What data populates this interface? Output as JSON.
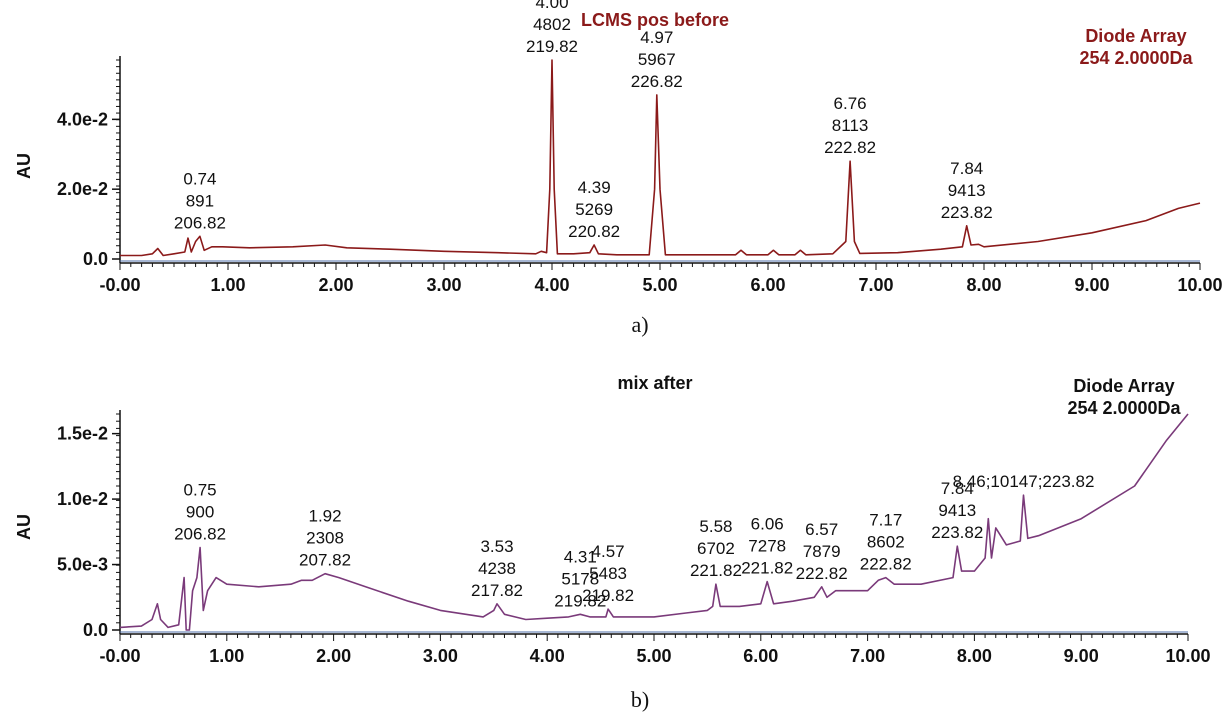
{
  "chart_data": [
    {
      "type": "line",
      "title": "LCMS  pos  before",
      "corner_label": [
        "Diode Array",
        "254 2.0000Da"
      ],
      "ylabel": "AU",
      "caption": "a)",
      "color": "#8b1a1a",
      "title_color": "#8b1a1a",
      "xlim": [
        0,
        10
      ],
      "ylim": [
        0,
        0.057
      ],
      "xticks": [
        "-0.00",
        "1.00",
        "2.00",
        "3.00",
        "4.00",
        "5.00",
        "6.00",
        "7.00",
        "8.00",
        "9.00",
        "10.00"
      ],
      "yticks": [
        {
          "value": 0,
          "label": "0.0"
        },
        {
          "value": 0.02,
          "label": "2.0e-2"
        },
        {
          "value": 0.04,
          "label": "4.0e-2"
        }
      ],
      "x": [
        0.0,
        0.2,
        0.3,
        0.35,
        0.4,
        0.5,
        0.6,
        0.63,
        0.66,
        0.7,
        0.74,
        0.78,
        0.85,
        0.95,
        1.2,
        1.6,
        1.9,
        2.1,
        2.5,
        3.0,
        3.5,
        3.85,
        3.9,
        3.95,
        3.98,
        4.0,
        4.02,
        4.05,
        4.2,
        4.35,
        4.39,
        4.43,
        4.6,
        4.9,
        4.95,
        4.97,
        5.0,
        5.05,
        5.3,
        5.7,
        5.75,
        5.8,
        6.0,
        6.05,
        6.1,
        6.25,
        6.3,
        6.35,
        6.6,
        6.72,
        6.76,
        6.8,
        6.85,
        7.2,
        7.6,
        7.8,
        7.84,
        7.88,
        7.95,
        8.0,
        8.5,
        9.0,
        9.5,
        9.8,
        10.0
      ],
      "y": [
        0.001,
        0.001,
        0.0015,
        0.003,
        0.001,
        0.0015,
        0.002,
        0.006,
        0.002,
        0.005,
        0.0065,
        0.0025,
        0.0035,
        0.0035,
        0.0032,
        0.0035,
        0.004,
        0.0032,
        0.0028,
        0.0022,
        0.0018,
        0.0015,
        0.0022,
        0.0018,
        0.02,
        0.057,
        0.02,
        0.0015,
        0.0015,
        0.0018,
        0.004,
        0.0015,
        0.0012,
        0.0012,
        0.02,
        0.047,
        0.02,
        0.0012,
        0.0012,
        0.0012,
        0.0025,
        0.0012,
        0.0012,
        0.0025,
        0.0012,
        0.0012,
        0.0025,
        0.0012,
        0.0015,
        0.005,
        0.028,
        0.005,
        0.0016,
        0.0018,
        0.0028,
        0.0035,
        0.0095,
        0.004,
        0.0042,
        0.0035,
        0.005,
        0.0075,
        0.011,
        0.0145,
        0.016
      ],
      "annotations": [
        {
          "x": 0.74,
          "y": 0.0065,
          "lines": [
            "0.74",
            "891",
            "206.82"
          ]
        },
        {
          "x": 4.0,
          "y": 0.057,
          "lines": [
            "4.00",
            "4802",
            "219.82"
          ]
        },
        {
          "x": 4.39,
          "y": 0.004,
          "lines": [
            "4.39",
            "5269",
            "220.82"
          ]
        },
        {
          "x": 4.97,
          "y": 0.047,
          "lines": [
            "4.97",
            "5967",
            "226.82"
          ]
        },
        {
          "x": 6.76,
          "y": 0.028,
          "lines": [
            "6.76",
            "8113",
            "222.82"
          ]
        },
        {
          "x": 7.84,
          "y": 0.0095,
          "lines": [
            "7.84",
            "9413",
            "223.82"
          ]
        }
      ]
    },
    {
      "type": "line",
      "title": "mix after",
      "corner_label": [
        "Diode Array",
        "254 2.0000Da"
      ],
      "ylabel": "AU",
      "caption": "b)",
      "color": "#7a3a7a",
      "title_color": "#111111",
      "xlim": [
        0,
        10
      ],
      "ylim": [
        0,
        0.0165
      ],
      "xticks": [
        "-0.00",
        "1.00",
        "2.00",
        "3.00",
        "4.00",
        "5.00",
        "6.00",
        "7.00",
        "8.00",
        "9.00",
        "10.00"
      ],
      "yticks": [
        {
          "value": 0,
          "label": "0.0"
        },
        {
          "value": 0.005,
          "label": "5.0e-3"
        },
        {
          "value": 0.01,
          "label": "1.0e-2"
        },
        {
          "value": 0.015,
          "label": "1.5e-2"
        }
      ],
      "x": [
        0.0,
        0.2,
        0.3,
        0.35,
        0.38,
        0.45,
        0.55,
        0.6,
        0.62,
        0.65,
        0.68,
        0.72,
        0.75,
        0.78,
        0.82,
        0.9,
        1.0,
        1.3,
        1.6,
        1.7,
        1.8,
        1.92,
        2.05,
        2.3,
        2.7,
        3.0,
        3.4,
        3.5,
        3.53,
        3.6,
        3.8,
        4.0,
        4.2,
        4.31,
        4.4,
        4.55,
        4.57,
        4.62,
        5.0,
        5.3,
        5.5,
        5.55,
        5.58,
        5.62,
        5.8,
        6.0,
        6.06,
        6.12,
        6.3,
        6.5,
        6.57,
        6.62,
        6.7,
        7.0,
        7.1,
        7.17,
        7.25,
        7.5,
        7.8,
        7.84,
        7.88,
        8.0,
        8.1,
        8.13,
        8.16,
        8.2,
        8.3,
        8.43,
        8.46,
        8.5,
        8.6,
        9.0,
        9.5,
        9.8,
        10.0
      ],
      "y": [
        0.0002,
        0.0003,
        0.0008,
        0.002,
        0.0008,
        0.0002,
        0.0004,
        0.004,
        0.0,
        0.0,
        0.003,
        0.004,
        0.0063,
        0.0015,
        0.003,
        0.004,
        0.0035,
        0.0033,
        0.0035,
        0.0038,
        0.0038,
        0.0043,
        0.004,
        0.0033,
        0.0022,
        0.0015,
        0.001,
        0.0015,
        0.002,
        0.0012,
        0.0008,
        0.0009,
        0.001,
        0.0012,
        0.001,
        0.001,
        0.0016,
        0.001,
        0.001,
        0.0013,
        0.0015,
        0.0018,
        0.0035,
        0.0018,
        0.0018,
        0.002,
        0.0037,
        0.002,
        0.0022,
        0.0025,
        0.0033,
        0.0025,
        0.003,
        0.003,
        0.0038,
        0.004,
        0.0035,
        0.0035,
        0.004,
        0.0064,
        0.0045,
        0.0045,
        0.0055,
        0.0085,
        0.0055,
        0.0078,
        0.0065,
        0.0068,
        0.0103,
        0.007,
        0.0072,
        0.0085,
        0.011,
        0.0145,
        0.0165
      ],
      "annotations": [
        {
          "x": 0.75,
          "y": 0.0063,
          "lines": [
            "0.75",
            "900",
            "206.82"
          ]
        },
        {
          "x": 1.92,
          "y": 0.0043,
          "lines": [
            "1.92",
            "2308",
            "207.82"
          ]
        },
        {
          "x": 3.53,
          "y": 0.002,
          "lines": [
            "3.53",
            "4238",
            "217.82"
          ]
        },
        {
          "x": 4.31,
          "y": 0.0012,
          "lines": [
            "4.31",
            "5178",
            "219.82"
          ]
        },
        {
          "x": 4.57,
          "y": 0.0016,
          "lines": [
            "4.57",
            "5483",
            "219.82"
          ]
        },
        {
          "x": 5.58,
          "y": 0.0035,
          "lines": [
            "5.58",
            "6702",
            "221.82"
          ]
        },
        {
          "x": 6.06,
          "y": 0.0037,
          "lines": [
            "6.06",
            "7278",
            "221.82"
          ]
        },
        {
          "x": 6.57,
          "y": 0.0033,
          "lines": [
            "6.57",
            "7879",
            "222.82"
          ]
        },
        {
          "x": 7.17,
          "y": 0.004,
          "lines": [
            "7.17",
            "8602",
            "222.82"
          ]
        },
        {
          "x": 7.84,
          "y": 0.0064,
          "lines": [
            "7.84",
            "9413",
            "223.82"
          ]
        },
        {
          "x": 8.46,
          "y": 0.0103,
          "lines": [
            "8.46;10147;223.82"
          ]
        }
      ]
    }
  ]
}
